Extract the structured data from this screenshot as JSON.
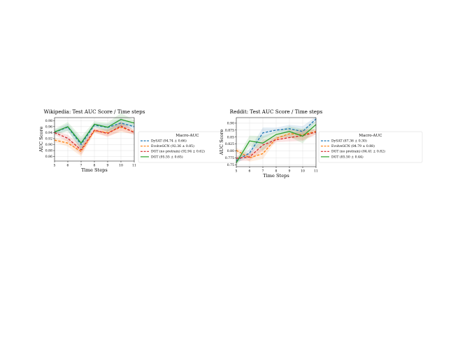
{
  "chart_data": [
    {
      "type": "line",
      "title": "Wikipedia: Test AUC Score / Time steps",
      "xlabel": "Time Steps",
      "ylabel": "AUC Score",
      "x": [
        5,
        6,
        7,
        8,
        9,
        10,
        11
      ],
      "xticks": [
        "5",
        "6",
        "7",
        "8",
        "9",
        "10",
        "11"
      ],
      "ylim": [
        0.845,
        0.99
      ],
      "yticks": [
        0.86,
        0.88,
        0.9,
        0.92,
        0.94,
        0.96,
        0.98
      ],
      "ytick_labels": [
        "0.86",
        "0.88",
        "0.90",
        "0.92",
        "0.94",
        "0.96",
        "0.98"
      ],
      "grid": true,
      "legend": {
        "title": "Macro-AUC",
        "placement": "outside-right"
      },
      "series": [
        {
          "name": "DySAT (94.74 ± 0.66)",
          "color": "#1f77b4",
          "dash": true,
          "values": [
            0.941,
            0.958,
            0.9,
            0.965,
            0.957,
            0.972,
            0.96
          ]
        },
        {
          "name": "EvolveGCN (92.36 ± 0.85)",
          "color": "#ff7f0e",
          "dash": true,
          "values": [
            0.915,
            0.905,
            0.877,
            0.946,
            0.94,
            0.958,
            0.942
          ]
        },
        {
          "name": "DGT (no pretrain) (92.94 ± 0.62)",
          "color": "#d62728",
          "dash": true,
          "values": [
            0.94,
            0.921,
            0.882,
            0.948,
            0.937,
            0.962,
            0.94
          ]
        },
        {
          "name": "DGT (95.55 ± 0.65)",
          "color": "#2ca02c",
          "dash": false,
          "values": [
            0.942,
            0.96,
            0.905,
            0.968,
            0.958,
            0.984,
            0.972
          ]
        }
      ]
    },
    {
      "type": "line",
      "title": "Reddit: Test AUC Score / Time steps",
      "xlabel": "Time Steps",
      "ylabel": "AUC Score",
      "x": [
        5,
        6,
        7,
        8,
        9,
        10,
        11
      ],
      "xticks": [
        "5",
        "6",
        "7",
        "8",
        "9",
        "10",
        "11"
      ],
      "ylim": [
        0.743,
        0.92
      ],
      "yticks": [
        0.75,
        0.775,
        0.8,
        0.825,
        0.85,
        0.875,
        0.9
      ],
      "ytick_labels": [
        "0.75",
        "0.775",
        "0.80",
        "0.825",
        "0.85",
        "0.875",
        "0.90"
      ],
      "grid": true,
      "legend": {
        "title": "Macro-AUC",
        "placement": "outside-right"
      },
      "series": [
        {
          "name": "DySAT (87.36 ± 0.30)",
          "color": "#1f77b4",
          "dash": true,
          "values": [
            0.765,
            0.792,
            0.865,
            0.875,
            0.88,
            0.87,
            0.915
          ]
        },
        {
          "name": "EvolveGCN (84.79 ± 0.88)",
          "color": "#ff7f0e",
          "dash": true,
          "values": [
            0.802,
            0.775,
            0.79,
            0.845,
            0.862,
            0.858,
            0.87
          ]
        },
        {
          "name": "DGT (no pretrain) (84.41 ± 0.82)",
          "color": "#d62728",
          "dash": true,
          "values": [
            0.773,
            0.778,
            0.821,
            0.84,
            0.848,
            0.855,
            0.868
          ]
        },
        {
          "name": "DGT (85.50 ± 0.44)",
          "color": "#2ca02c",
          "dash": false,
          "values": [
            0.757,
            0.836,
            0.828,
            0.859,
            0.87,
            0.853,
            0.895
          ]
        }
      ]
    }
  ]
}
